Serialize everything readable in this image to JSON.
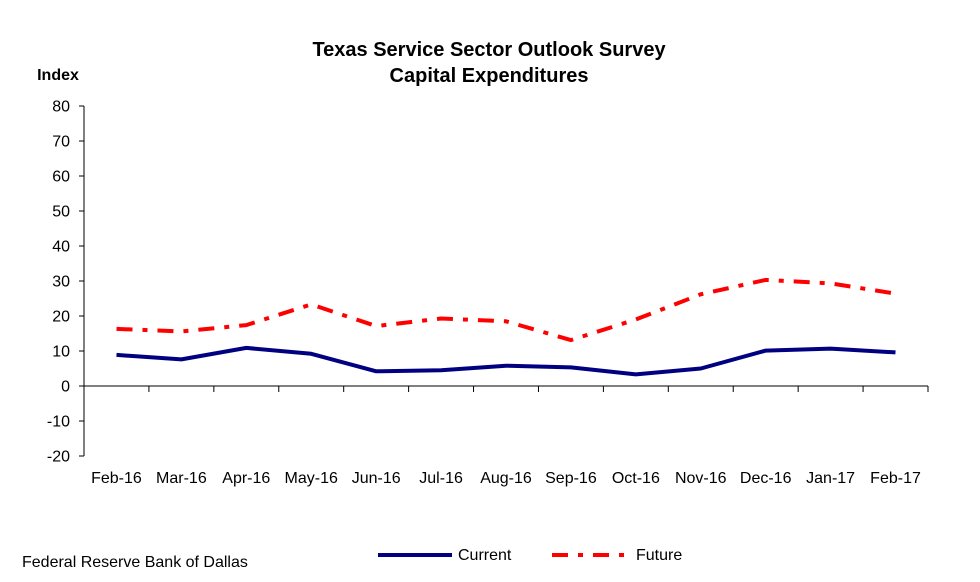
{
  "chart_data": {
    "type": "line",
    "title": "Texas Service Sector Outlook Survey",
    "subtitle": "Capital Expenditures",
    "ylabel": "Index",
    "xlabel": "",
    "ylim": [
      -20,
      80
    ],
    "yticks": [
      80,
      70,
      60,
      50,
      40,
      30,
      20,
      10,
      0,
      -10,
      -20
    ],
    "categories": [
      "Feb-16",
      "Mar-16",
      "Apr-16",
      "May-16",
      "Jun-16",
      "Jul-16",
      "Aug-16",
      "Sep-16",
      "Oct-16",
      "Nov-16",
      "Dec-16",
      "Jan-17",
      "Feb-17"
    ],
    "series": [
      {
        "name": "Current",
        "color": "#000080",
        "style": "solid",
        "values": [
          8.9,
          7.6,
          10.9,
          9.2,
          4.2,
          4.5,
          5.8,
          5.3,
          3.3,
          5.0,
          10.1,
          10.7,
          9.6
        ]
      },
      {
        "name": "Future",
        "color": "#ff0000",
        "style": "dash-dot",
        "values": [
          16.3,
          15.6,
          17.4,
          23.3,
          17.1,
          19.3,
          18.5,
          13.1,
          19.0,
          26.2,
          30.3,
          29.3,
          26.4
        ]
      }
    ],
    "grid": false,
    "legend": "bottom"
  },
  "source": "Federal Reserve Bank of Dallas"
}
